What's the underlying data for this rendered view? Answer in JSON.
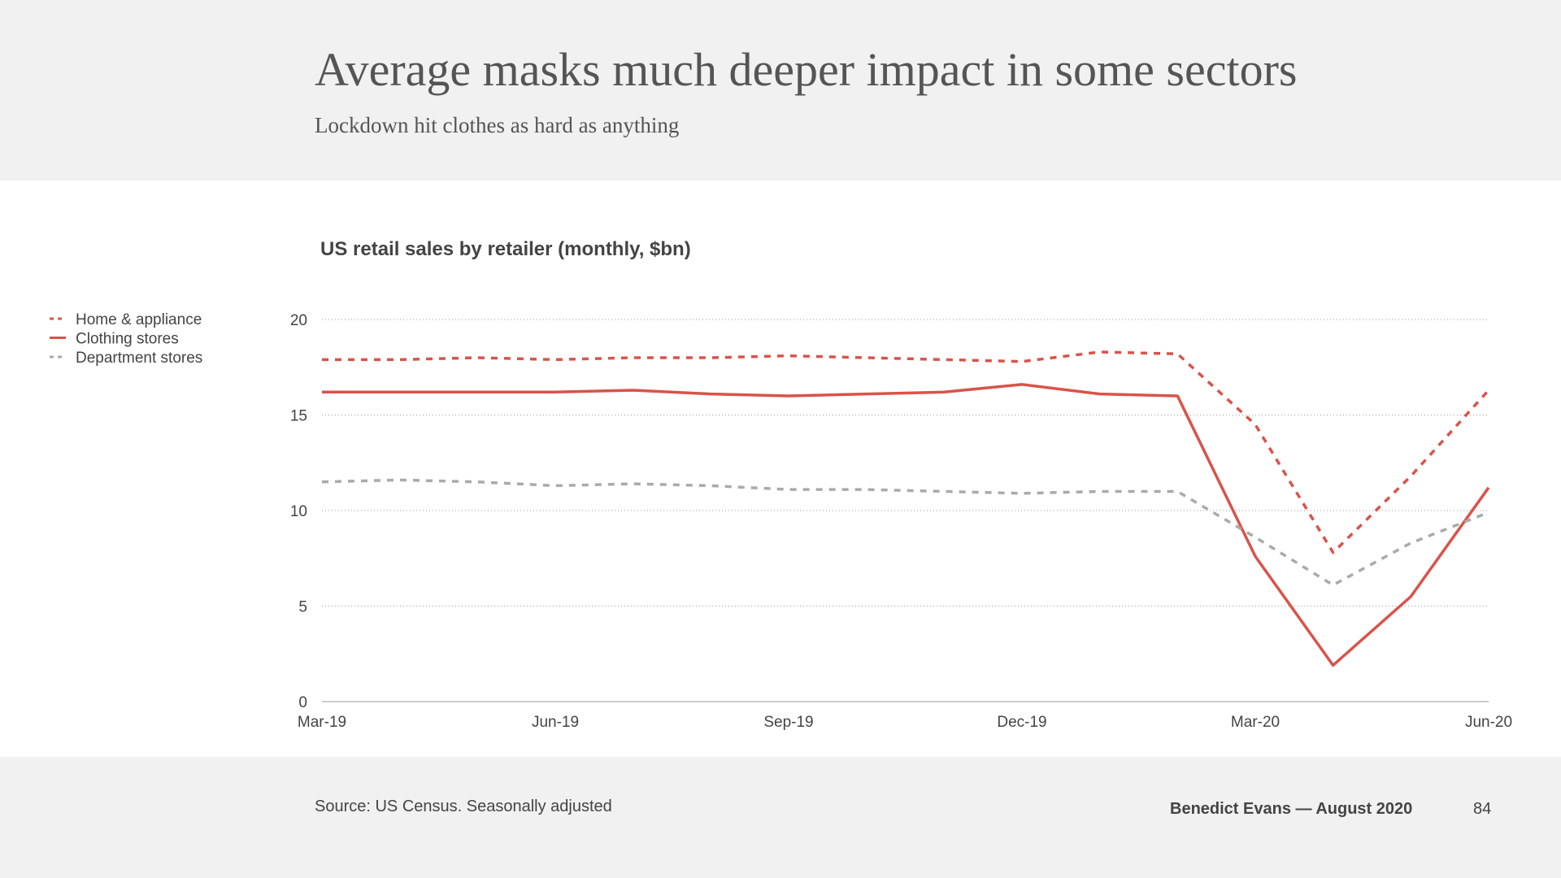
{
  "chart_data": {
    "type": "line",
    "title": "Average masks much deeper impact in some sectors",
    "subtitle": "Lockdown hit clothes as hard as anything",
    "chart_title": "US retail sales by retailer (monthly, $bn)",
    "source": "Source: US Census. Seasonally adjusted",
    "footer": "Benedict Evans — August 2020",
    "page_number": "84",
    "categories": [
      "Mar-19",
      null,
      null,
      "Jun-19",
      null,
      null,
      "Sep-19",
      null,
      null,
      "Dec-19",
      null,
      null,
      "Mar-20",
      null,
      null,
      "Jun-20"
    ],
    "series": [
      {
        "name": "Home & appliance",
        "color": "#d9534a",
        "style": "dashed",
        "values": [
          17.9,
          17.9,
          18.0,
          17.9,
          18.0,
          18.0,
          18.1,
          18.0,
          17.9,
          17.8,
          18.3,
          18.2,
          14.5,
          7.8,
          11.8,
          16.3
        ]
      },
      {
        "name": "Clothing stores",
        "color": "#d9534a",
        "style": "solid",
        "values": [
          16.2,
          16.2,
          16.2,
          16.2,
          16.3,
          16.1,
          16.0,
          16.1,
          16.2,
          16.6,
          16.1,
          16.0,
          7.6,
          1.9,
          5.5,
          11.2
        ]
      },
      {
        "name": "Department stores",
        "color": "#aaaaaa",
        "style": "dashed",
        "values": [
          11.5,
          11.6,
          11.5,
          11.3,
          11.4,
          11.3,
          11.1,
          11.1,
          11.0,
          10.9,
          11.0,
          11.0,
          8.6,
          6.1,
          8.3,
          9.9
        ]
      }
    ],
    "ylim": [
      0,
      20
    ],
    "yticks": [
      0,
      5,
      10,
      15,
      20
    ],
    "grid": true,
    "legend": "left"
  }
}
